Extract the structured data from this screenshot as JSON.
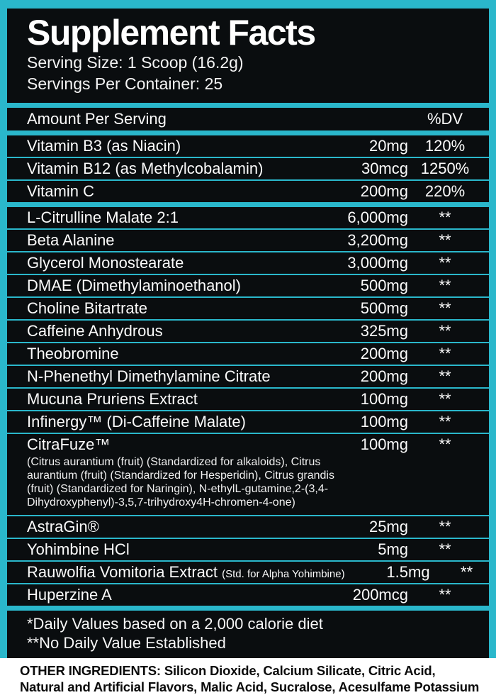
{
  "colors": {
    "border_teal": "#2ab7cb",
    "panel_black": "#0a0d0f",
    "panel_text": "#ffffff",
    "bottom_band_bg": "#ffffff",
    "bottom_band_text": "#0b0b0b"
  },
  "header": {
    "title": "Supplement Facts",
    "serving_size": "Serving Size: 1 Scoop (16.2g)",
    "servings_per_container": "Servings Per Container: 25"
  },
  "columns": {
    "amount_header": "Amount Per Serving",
    "dv_header": "%DV"
  },
  "vitamins": [
    {
      "name": "Vitamin B3 (as Niacin)",
      "amount": "20mg",
      "dv": "120%"
    },
    {
      "name": "Vitamin B12 (as Methylcobalamin)",
      "amount": "30mcg",
      "dv": "1250%"
    },
    {
      "name": "Vitamin C",
      "amount": "200mg",
      "dv": "220%"
    }
  ],
  "ingredients": [
    {
      "name": "L-Citrulline Malate 2:1",
      "amount": "6,000mg",
      "dv": "**"
    },
    {
      "name": "Beta Alanine",
      "amount": "3,200mg",
      "dv": "**"
    },
    {
      "name": "Glycerol Monostearate",
      "amount": "3,000mg",
      "dv": "**"
    },
    {
      "name": "DMAE (Dimethylaminoethanol)",
      "amount": "500mg",
      "dv": "**"
    },
    {
      "name": "Choline Bitartrate",
      "amount": "500mg",
      "dv": "**"
    },
    {
      "name": "Caffeine Anhydrous",
      "amount": "325mg",
      "dv": "**"
    },
    {
      "name": "Theobromine",
      "amount": "200mg",
      "dv": "**"
    },
    {
      "name": "N-Phenethyl Dimethylamine Citrate",
      "amount": "200mg",
      "dv": "**"
    },
    {
      "name": "Mucuna Pruriens Extract",
      "amount": "100mg",
      "dv": "**"
    },
    {
      "name": "Infinergy™ (Di-Caffeine Malate)",
      "amount": "100mg",
      "dv": "**"
    },
    {
      "name": "CitraFuze™",
      "amount": "100mg",
      "dv": "**",
      "description": "(Citrus aurantium (fruit) (Standardized for alkaloids), Citrus aurantium (fruit) (Standardized for Hesperidin), Citrus grandis (fruit) (Standardized for Naringin), N-ethylL-gutamine,2-(3,4-Dihydroxyphenyl)-3,5,7-trihydroxy4H-chromen-4-one)"
    },
    {
      "name": "AstraGin®",
      "amount": "25mg",
      "dv": "**"
    },
    {
      "name": "Yohimbine HCl",
      "amount": "5mg",
      "dv": "**"
    },
    {
      "name": "Rauwolfia Vomitoria Extract",
      "note": "(Std. for Alpha Yohimbine)",
      "amount": "1.5mg",
      "dv": "**"
    },
    {
      "name": "Huperzine A",
      "amount": "200mcg",
      "dv": "**"
    }
  ],
  "footnotes": {
    "line1": "*Daily Values based on a 2,000 calorie diet",
    "line2": "**No Daily Value Established"
  },
  "other_ingredients": {
    "label": "OTHER INGREDIENTS:",
    "line1_rest": " Silicon Dioxide, Calcium Silicate, Citric Acid,",
    "line2": "Natural and Artificial Flavors, Malic Acid, Sucralose, Acesulfame Potassium"
  }
}
